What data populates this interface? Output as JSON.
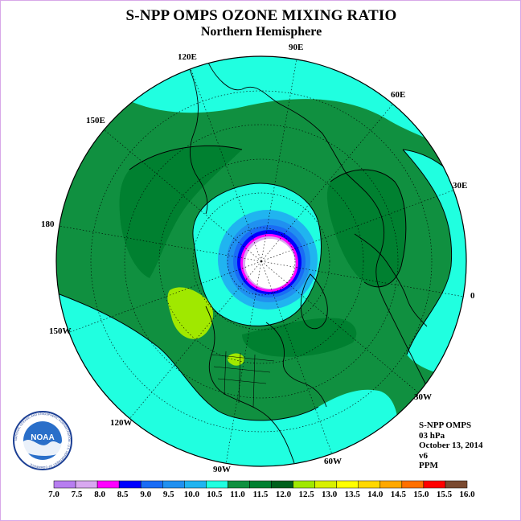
{
  "title": "S-NPP OMPS OZONE MIXING RATIO",
  "subtitle": "Northern Hemisphere",
  "info": {
    "instrument": "S-NPP OMPS",
    "pressure": "03 hPa",
    "date": "October 13, 2014",
    "version": "v6",
    "units": "PPM"
  },
  "longitude_labels": [
    "90E",
    "60E",
    "30E",
    "0",
    "30W",
    "60W",
    "90W",
    "120W",
    "150W",
    "180",
    "150E",
    "120E"
  ],
  "colorbar": {
    "ticks": [
      "7.0",
      "7.5",
      "8.0",
      "8.5",
      "9.0",
      "9.5",
      "10.0",
      "10.5",
      "11.0",
      "11.5",
      "12.0",
      "12.5",
      "13.0",
      "13.5",
      "14.0",
      "14.5",
      "15.0",
      "15.5",
      "16.0"
    ],
    "colors": [
      "#b77ef0",
      "#d8a8f0",
      "#ff00ff",
      "#0000ff",
      "#1a6cf5",
      "#2090f0",
      "#20b4f0",
      "#20ffe0",
      "#109040",
      "#008030",
      "#00601c",
      "#a0e800",
      "#d8f000",
      "#ffff00",
      "#ffd800",
      "#ffa800",
      "#ff7000",
      "#ff0000",
      "#7a4a30"
    ]
  },
  "logo": {
    "text": "NOAA",
    "ring_text": "NATIONAL OCEANIC AND ATMOSPHERIC ADMINISTRATION - U.S. DEPARTMENT OF COMMERCE"
  },
  "colors": {
    "band_10_5_11": "#20ffe0",
    "band_11_11_5": "#109040",
    "band_11_5_12": "#008030",
    "band_12_12_5": "#a0e800",
    "polar_low": "#ffffff"
  }
}
